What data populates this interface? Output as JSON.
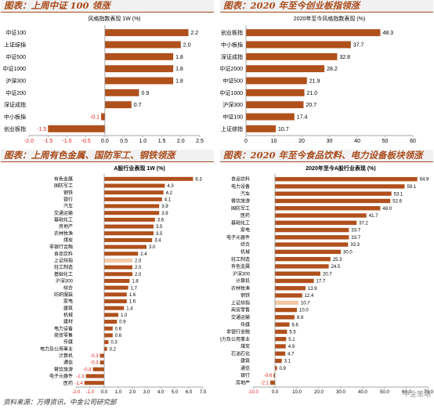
{
  "panels": [
    {
      "title": "图表：上周中证 100 领涨"
    },
    {
      "title": "图表：2020 年至今创业板指领涨"
    },
    {
      "title": "图表：上周有色金属、国防军工、钢铁领涨"
    },
    {
      "title": "图表：2020 年至今食品饮料、电力设备板块领涨"
    }
  ],
  "source_note": "资料来源：万得资讯，中金公司研究部",
  "watermark": "中金策略",
  "colors": {
    "bar": "#b0501c",
    "highlight": "#f2c8a6",
    "negative_label": "#e02020",
    "title": "#a94a1a"
  },
  "chart_data": [
    {
      "type": "bar",
      "orientation": "horizontal",
      "title": "风格指数表现 1W (%)",
      "categories": [
        "中证100",
        "上证综指",
        "中证500",
        "中证1000",
        "沪深300",
        "中证200",
        "深证成指",
        "中小板指",
        "创业板指"
      ],
      "values": [
        2.2,
        2.0,
        1.8,
        1.8,
        1.8,
        0.9,
        0.7,
        -0.1,
        -1.5
      ],
      "xlim": [
        -2.0,
        2.5
      ],
      "xticks": [
        "-2.0",
        "-1.5",
        "-1.0",
        "-0.5",
        "0.0",
        "0.5",
        "1.0",
        "1.5",
        "2.0",
        "2.5"
      ],
      "label_decimals": 1
    },
    {
      "type": "bar",
      "orientation": "horizontal",
      "title": "2020年至今风格指数表现 (%)",
      "categories": [
        "创业板指",
        "中小板指",
        "深证成指",
        "中证2000",
        "中证500",
        "中证1000",
        "沪深300",
        "中证100",
        "上证综指"
      ],
      "values": [
        48.3,
        37.7,
        32.8,
        28.2,
        21.9,
        21.0,
        20.7,
        17.4,
        10.7
      ],
      "xlim": [
        0,
        60
      ],
      "xticks": [
        "0",
        "10",
        "20",
        "30",
        "40",
        "50",
        "60"
      ],
      "label_decimals": 1
    },
    {
      "type": "bar",
      "orientation": "horizontal",
      "title": "A股行业表现 1W (%)",
      "categories": [
        "有色金属",
        "国防军工",
        "钢铁",
        "银行",
        "汽车",
        "交通运输",
        "基础化工",
        "房地产",
        "农林牧渔",
        "煤炭",
        "非银行金融",
        "食品饮料",
        "上证综指",
        "轻工制造",
        "基础化工",
        "沪深300",
        "综合",
        "纺织服装",
        "家电",
        "建筑",
        "机械",
        "建材",
        "电力设备",
        "商贸零售",
        "传媒",
        "电力及公用事业",
        "计算机",
        "通信",
        "餐饮旅游",
        "电子元器件",
        "医药"
      ],
      "values": [
        6.3,
        4.3,
        4.2,
        4.1,
        3.9,
        3.9,
        3.6,
        3.5,
        3.5,
        3.4,
        3.0,
        2.4,
        2.0,
        2.0,
        2.0,
        1.8,
        1.7,
        1.6,
        1.6,
        1.4,
        1.0,
        0.9,
        0.6,
        0.6,
        0.3,
        0.2,
        -0.3,
        -0.3,
        -0.8,
        -1.3,
        -1.4
      ],
      "highlight_category": "上证综指",
      "xlim": [
        -2.0,
        7.0
      ],
      "xticks": [
        "-2.0",
        "-1.0",
        "0.0",
        "1.0",
        "2.0",
        "3.0",
        "4.0",
        "5.0",
        "6.0",
        "7.0"
      ],
      "label_decimals": 1
    },
    {
      "type": "bar",
      "orientation": "horizontal",
      "title": "2020年至今A股行业表现 (%)",
      "categories": [
        "食品饮料",
        "电力设备",
        "汽车",
        "餐饮旅游",
        "国防军工",
        "医药",
        "基础化工",
        "家电",
        "电子元器件",
        "综合",
        "机械",
        "轻工制造",
        "有色金属",
        "沪深300",
        "计算机",
        "农林牧渔",
        "钢铁",
        "上证综指",
        "商贸零售",
        "交通运输",
        "传媒",
        "非银行金融",
        "电力及公用事业",
        "煤炭",
        "石油石化",
        "建筑",
        "通信",
        "银行",
        "房地产"
      ],
      "values": [
        64.9,
        59.1,
        53.1,
        52.6,
        48.0,
        41.7,
        37.2,
        33.7,
        33.7,
        33.3,
        30.0,
        25.3,
        24.5,
        20.7,
        17.7,
        13.9,
        12.4,
        10.7,
        10.0,
        8.9,
        6.6,
        5.5,
        5.1,
        4.9,
        4.7,
        3.1,
        0.9,
        -0.6,
        -2.1
      ],
      "highlight_category": "上证综指",
      "xlim": [
        -10,
        70
      ],
      "xticks": [
        "-10.0",
        "0.0",
        "10.0",
        "20.0",
        "30.0",
        "40.0",
        "50.0",
        "60.0",
        "70.0"
      ],
      "label_decimals": 1
    }
  ]
}
